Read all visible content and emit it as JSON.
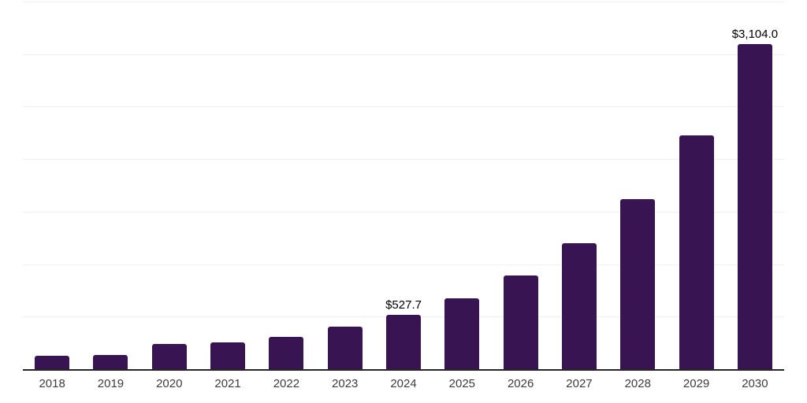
{
  "chart_data": {
    "type": "bar",
    "categories": [
      "2018",
      "2019",
      "2020",
      "2021",
      "2022",
      "2023",
      "2024",
      "2025",
      "2026",
      "2027",
      "2028",
      "2029",
      "2030"
    ],
    "values": [
      135,
      142,
      247,
      262,
      315,
      412,
      527.7,
      682,
      900,
      1205,
      1630,
      2230,
      3104
    ],
    "bar_labels": [
      "",
      "",
      "",
      "",
      "",
      "",
      "$527.7",
      "",
      "",
      "",
      "",
      "",
      "$3,104.0"
    ],
    "title": "",
    "xlabel": "",
    "ylabel": "",
    "ylim": [
      0,
      3500
    ],
    "gridlines": [
      500,
      1000,
      1500,
      2000,
      2500,
      3000,
      3500
    ],
    "grid": "horizontal",
    "legend_position": "none",
    "currency_prefix": "$",
    "colors": {
      "bar": "#391452",
      "axis_line": "#262626",
      "gridline": "#f0f0f1",
      "tick_label": "#3c3c3c",
      "data_label": "#000000",
      "background": "#ffffff"
    }
  }
}
